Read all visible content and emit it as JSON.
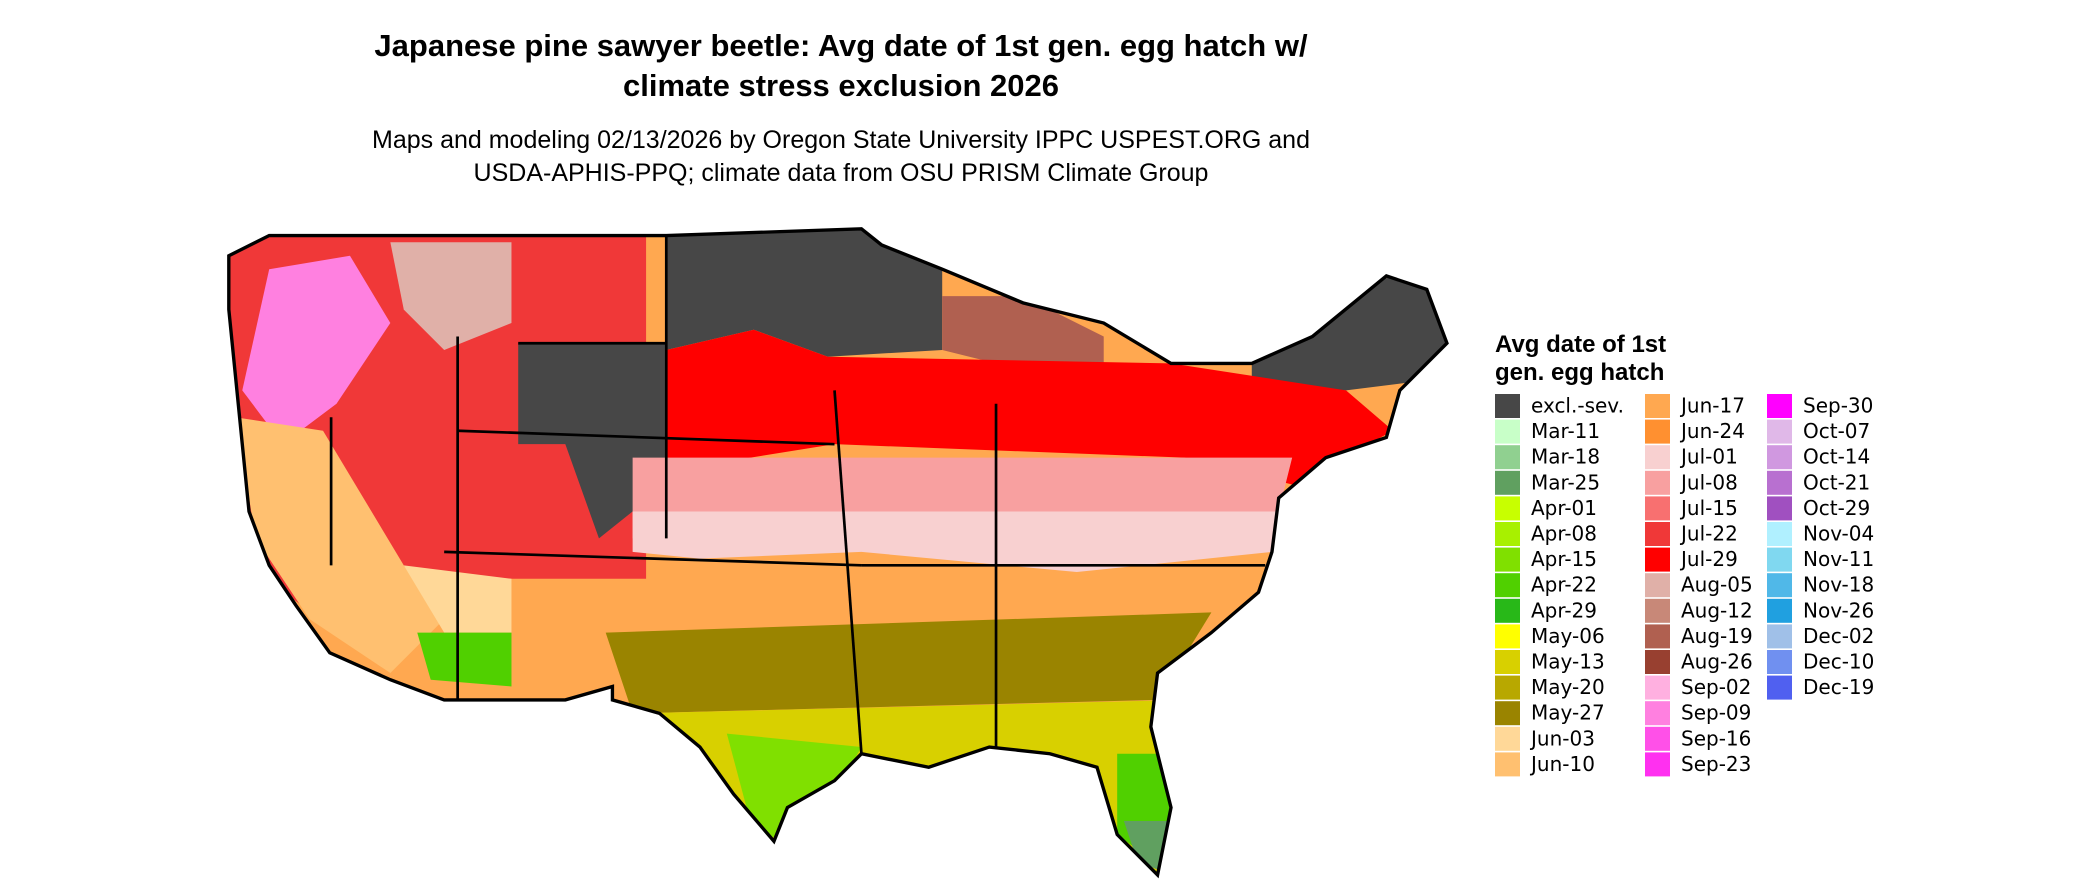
{
  "header": {
    "title": [
      "Japanese pine sawyer beetle: Avg date of 1st gen. egg hatch w/",
      "climate stress exclusion 2026"
    ],
    "subtitle": [
      "Maps and modeling 02/13/2026 by Oregon State University IPPC USPEST.ORG and",
      "USDA-APHIS-PPQ; climate data from OSU PRISM Climate Group"
    ]
  },
  "legend": {
    "title": [
      "Avg date of 1st",
      "gen. egg hatch"
    ],
    "items": [
      {
        "label": "excl.-sev.",
        "color": "#474747"
      },
      {
        "label": "Mar-11",
        "color": "#c8ffc8"
      },
      {
        "label": "Mar-18",
        "color": "#90d090"
      },
      {
        "label": "Mar-25",
        "color": "#60a060"
      },
      {
        "label": "Apr-01",
        "color": "#c8ff00"
      },
      {
        "label": "Apr-08",
        "color": "#a8f000"
      },
      {
        "label": "Apr-15",
        "color": "#80e000"
      },
      {
        "label": "Apr-22",
        "color": "#50d000"
      },
      {
        "label": "Apr-29",
        "color": "#28b818"
      },
      {
        "label": "May-06",
        "color": "#ffff00"
      },
      {
        "label": "May-13",
        "color": "#d8d000"
      },
      {
        "label": "May-20",
        "color": "#b8a800"
      },
      {
        "label": "May-27",
        "color": "#9a8400"
      },
      {
        "label": "Jun-03",
        "color": "#ffd898"
      },
      {
        "label": "Jun-10",
        "color": "#ffc070"
      },
      {
        "label": "Jun-17",
        "color": "#ffa850"
      },
      {
        "label": "Jun-24",
        "color": "#ff9030"
      },
      {
        "label": "Jul-01",
        "color": "#f8d0d0"
      },
      {
        "label": "Jul-08",
        "color": "#f8a0a0"
      },
      {
        "label": "Jul-15",
        "color": "#f87070"
      },
      {
        "label": "Jul-22",
        "color": "#f03838"
      },
      {
        "label": "Jul-29",
        "color": "#ff0000"
      },
      {
        "label": "Aug-05",
        "color": "#e0b0a8"
      },
      {
        "label": "Aug-12",
        "color": "#c88878"
      },
      {
        "label": "Aug-19",
        "color": "#b06050"
      },
      {
        "label": "Aug-26",
        "color": "#984030"
      },
      {
        "label": "Sep-02",
        "color": "#ffb0e0"
      },
      {
        "label": "Sep-09",
        "color": "#ff80e0"
      },
      {
        "label": "Sep-16",
        "color": "#ff50e8"
      },
      {
        "label": "Sep-23",
        "color": "#ff30f0"
      },
      {
        "label": "Sep-30",
        "color": "#ff00ff"
      },
      {
        "label": "Oct-07",
        "color": "#e0b8e8"
      },
      {
        "label": "Oct-14",
        "color": "#d098e0"
      },
      {
        "label": "Oct-21",
        "color": "#b870d0"
      },
      {
        "label": "Oct-29",
        "color": "#a050c0"
      },
      {
        "label": "Nov-04",
        "color": "#b0f0ff"
      },
      {
        "label": "Nov-11",
        "color": "#80d8f0"
      },
      {
        "label": "Nov-18",
        "color": "#50b8e8"
      },
      {
        "label": "Nov-26",
        "color": "#20a0e0"
      },
      {
        "label": "Dec-02",
        "color": "#a0c0e8"
      },
      {
        "label": "Dec-10",
        "color": "#7090f0"
      },
      {
        "label": "Dec-19",
        "color": "#5060f0"
      }
    ]
  }
}
